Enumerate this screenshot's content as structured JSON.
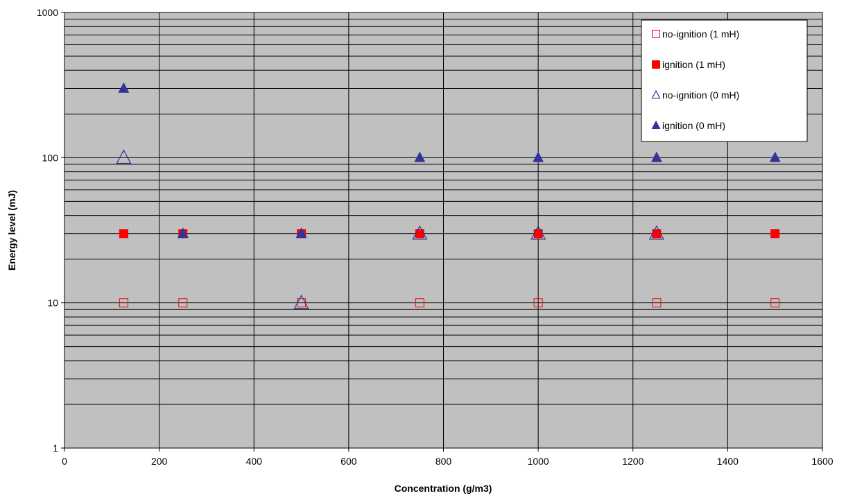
{
  "colors": {
    "plot_background": "#c0c0c0",
    "grid": "#000000",
    "red": "#ff0000",
    "navy": "#333399",
    "legend_background": "#ffffff"
  },
  "chart_data": {
    "type": "scatter",
    "title": "",
    "xlabel": "Concentration (g/m3)",
    "ylabel": "Energy level (mJ)",
    "xlim": [
      0,
      1600
    ],
    "ylim": [
      1,
      1000
    ],
    "yscale": "log",
    "xticks": [
      0,
      200,
      400,
      600,
      800,
      1000,
      1200,
      1400,
      1600
    ],
    "yticks": [
      1,
      10,
      100,
      1000
    ],
    "grid": true,
    "legend_position": "top-right",
    "series": [
      {
        "name": "no-ignition (1 mH)",
        "marker": "square-open",
        "color": "#ff0000",
        "points": [
          [
            125,
            10
          ],
          [
            250,
            10
          ],
          [
            500,
            10
          ],
          [
            750,
            10
          ],
          [
            1000,
            10
          ],
          [
            1250,
            10
          ],
          [
            1500,
            10
          ]
        ]
      },
      {
        "name": "ignition (1 mH)",
        "marker": "square-filled",
        "color": "#ff0000",
        "points": [
          [
            125,
            30
          ],
          [
            250,
            30
          ],
          [
            500,
            30
          ],
          [
            750,
            30
          ],
          [
            1000,
            30
          ],
          [
            1250,
            30
          ],
          [
            1500,
            30
          ]
        ]
      },
      {
        "name": "no-ignition (0 mH)",
        "marker": "triangle-open",
        "color": "#333399",
        "points": [
          [
            125,
            100
          ],
          [
            500,
            10
          ],
          [
            750,
            30
          ],
          [
            1000,
            30
          ],
          [
            1250,
            30
          ]
        ]
      },
      {
        "name": "ignition (0 mH)",
        "marker": "triangle-filled",
        "color": "#333399",
        "points": [
          [
            125,
            300
          ],
          [
            250,
            30
          ],
          [
            500,
            30
          ],
          [
            750,
            100
          ],
          [
            1000,
            100
          ],
          [
            1250,
            100
          ],
          [
            1500,
            100
          ]
        ]
      }
    ]
  }
}
